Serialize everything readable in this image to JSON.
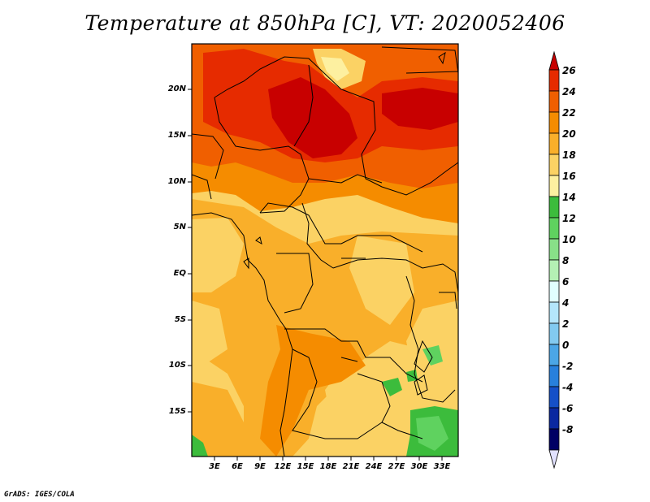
{
  "title": "Temperature at 850hPa [C], VT: 2020052406",
  "credit": "GrADS: IGES/COLA",
  "map": {
    "lat_labels": [
      "20N",
      "15N",
      "10N",
      "5N",
      "EQ",
      "5S",
      "10S",
      "15S"
    ],
    "lon_labels": [
      "3E",
      "6E",
      "9E",
      "12E",
      "15E",
      "18E",
      "21E",
      "24E",
      "27E",
      "30E",
      "33E"
    ]
  },
  "colorbar": {
    "labels": [
      "26",
      "24",
      "22",
      "20",
      "18",
      "16",
      "14",
      "12",
      "10",
      "8",
      "6",
      "4",
      "2",
      "0",
      "-2",
      "-4",
      "-6",
      "-8"
    ],
    "colors": [
      "#c80000",
      "#e62b00",
      "#f05f00",
      "#f58c00",
      "#f9af2a",
      "#fbd264",
      "#fdf0a0",
      "#3cbc3c",
      "#5fd25f",
      "#88e088",
      "#b4f0b4",
      "#e1ffff",
      "#b4e6fb",
      "#82caf0",
      "#4ba6e6",
      "#2880dc",
      "#1550c8",
      "#0a28a0",
      "#000064",
      "#e1e1ff"
    ]
  }
}
